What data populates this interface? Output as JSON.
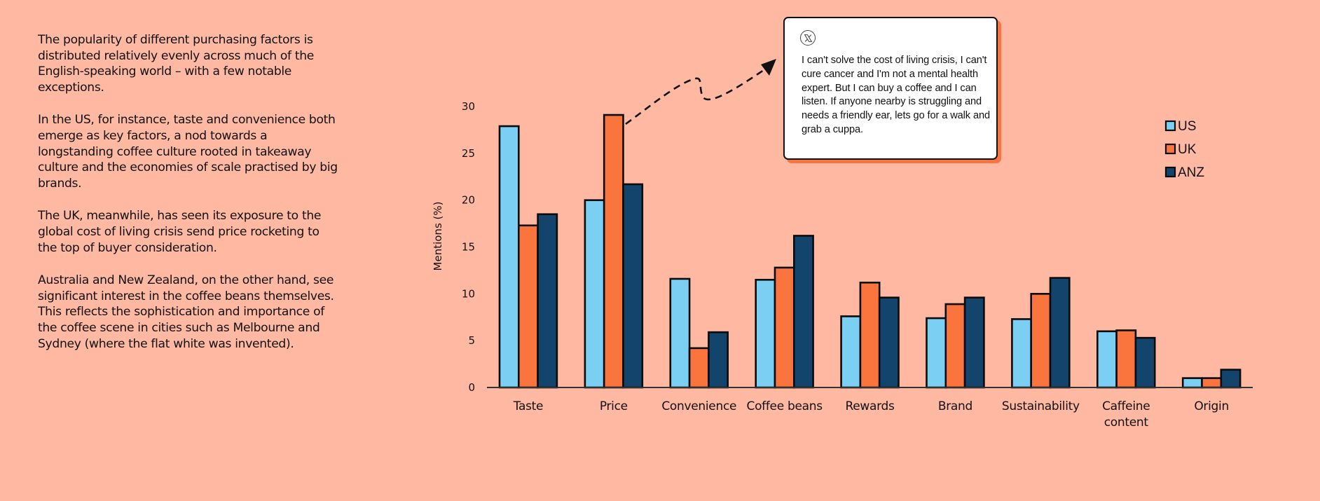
{
  "narrative": {
    "paragraphs": [
      "The popularity of different purchasing factors is distributed relatively evenly across much of the English-speaking world – with a few notable exceptions.",
      "In the US, for instance, taste and convenience both emerge as key factors, a nod towards a longstanding coffee culture rooted in takeaway culture and the economies of scale practised by big brands.",
      "The UK, meanwhile, has seen its exposure to the global cost of living crisis send price rocketing to the top of buyer consideration.",
      "Australia and New Zealand, on the other hand, see significant interest in the coffee beans themselves. This reflects the sophistication and importance of the coffee scene in cities such as Melbourne and Sydney (where the flat white was invented)."
    ]
  },
  "quote": {
    "icon": "x-logo-icon",
    "text": "I can't solve the cost of living crisis, I can't cure cancer and I'm not a mental health expert. But I can buy a coffee and I can listen. If anyone nearby is struggling and needs a friendly ear, lets go for a walk and grab a cuppa.",
    "annotates": "Price (UK)"
  },
  "colors": {
    "background": "#FFB9A2",
    "US": "#7ACFF2",
    "UK": "#FA743D",
    "ANZ": "#13446B",
    "outline": "#0B0B0B"
  },
  "chart_data": {
    "type": "bar",
    "title": "",
    "xlabel": "",
    "ylabel": "Mentions (%)",
    "ylim": [
      0,
      30
    ],
    "yticks": [
      0,
      5,
      10,
      15,
      20,
      25,
      30
    ],
    "grid": false,
    "legend_position": "top-right",
    "categories": [
      "Taste",
      "Price",
      "Convenience",
      "Coffee beans",
      "Rewards",
      "Brand",
      "Sustainability",
      "Caffeine content",
      "Origin"
    ],
    "category_label_lines": [
      [
        "Taste"
      ],
      [
        "Price"
      ],
      [
        "Convenience"
      ],
      [
        "Coffee beans"
      ],
      [
        "Rewards"
      ],
      [
        "Brand"
      ],
      [
        "Sustainability"
      ],
      [
        "Caffeine",
        "content"
      ],
      [
        "Origin"
      ]
    ],
    "series": [
      {
        "name": "US",
        "values": [
          27.9,
          20.0,
          11.6,
          11.5,
          7.6,
          7.4,
          7.3,
          6.0,
          1.0
        ]
      },
      {
        "name": "UK",
        "values": [
          17.3,
          29.1,
          4.2,
          12.8,
          11.2,
          8.9,
          10.0,
          6.1,
          1.0
        ]
      },
      {
        "name": "ANZ",
        "values": [
          18.5,
          21.7,
          5.9,
          16.2,
          9.6,
          9.6,
          11.7,
          5.3,
          1.9
        ]
      }
    ]
  }
}
